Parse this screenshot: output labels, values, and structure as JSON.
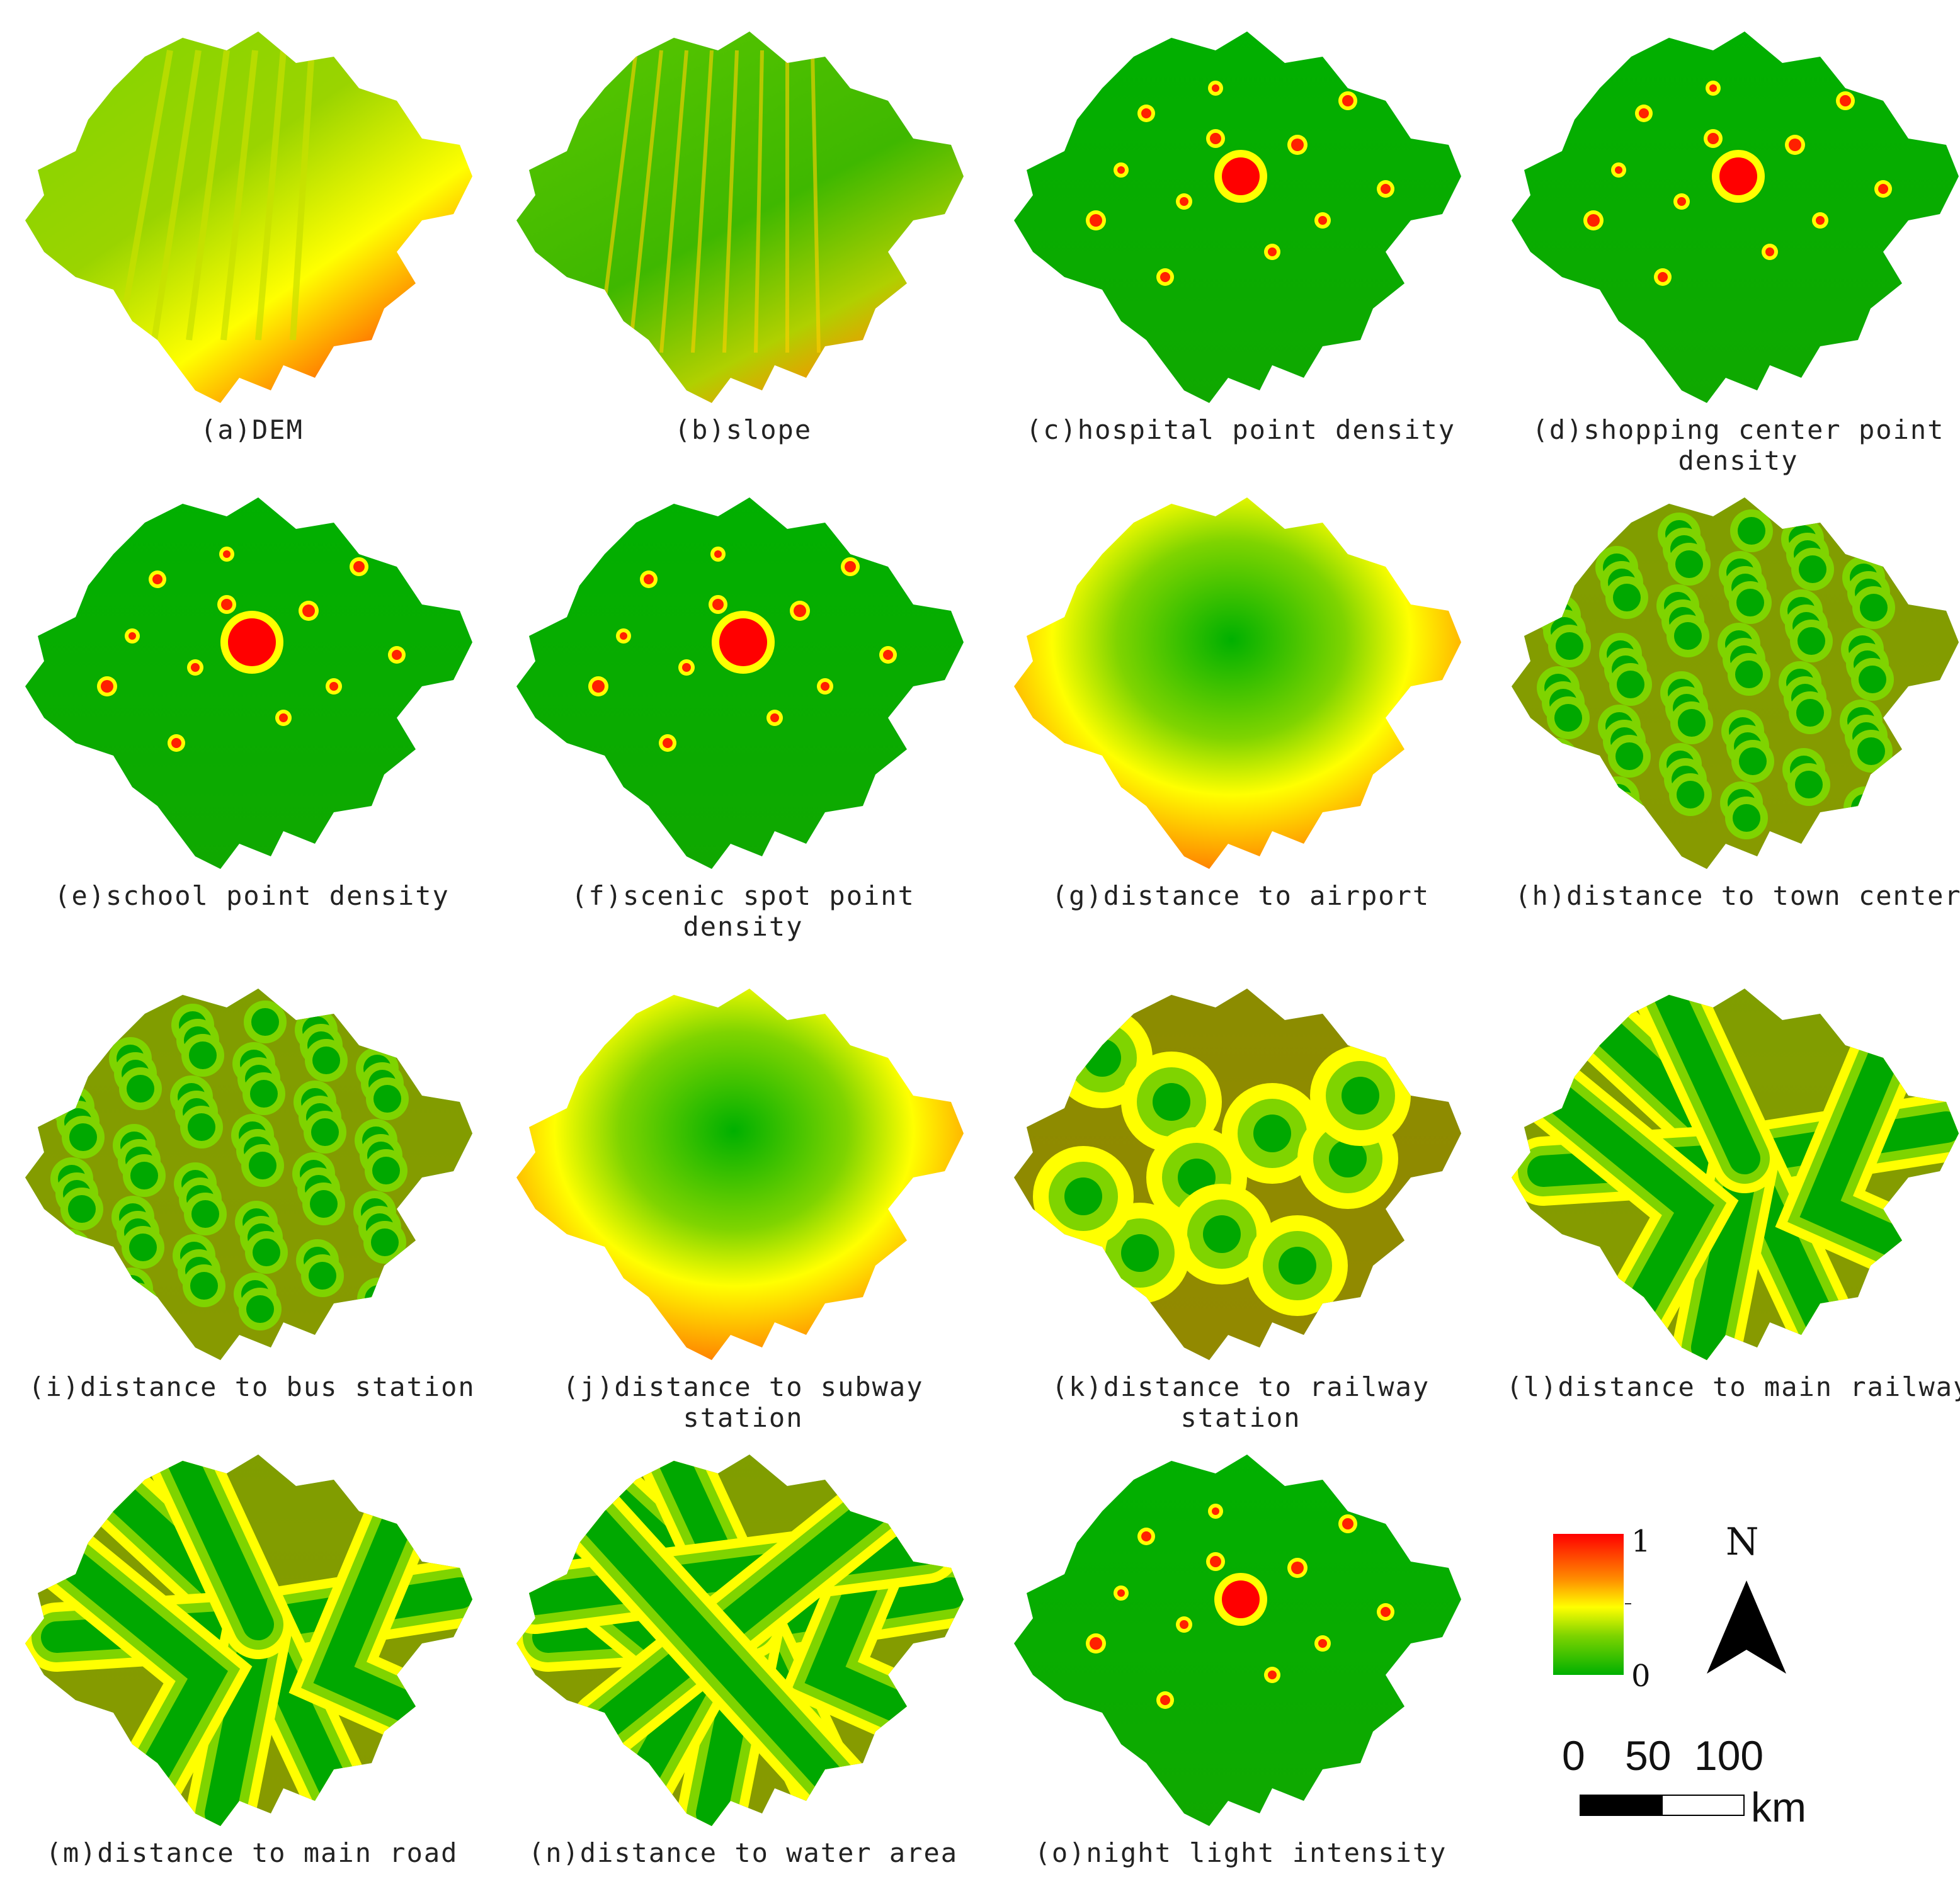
{
  "panels": [
    {
      "caption": "(a)DEM",
      "layer": "DEM",
      "pattern": "dem"
    },
    {
      "caption": "(b)slope",
      "layer": "slope",
      "pattern": "slope"
    },
    {
      "caption": "(c)hospital point density",
      "layer": "hospital point density",
      "pattern": "hotspot"
    },
    {
      "caption": "(d)shopping center point density",
      "layer": "shopping center point density",
      "pattern": "hotspot"
    },
    {
      "caption": "(e)school point density",
      "layer": "school point density",
      "pattern": "hotspot-big"
    },
    {
      "caption": "(f)scenic spot point density",
      "layer": "scenic spot point density",
      "pattern": "hotspot-big"
    },
    {
      "caption": "(g)distance to airport",
      "layer": "distance to airport",
      "pattern": "radial"
    },
    {
      "caption": "(h)distance to town center",
      "layer": "distance to town center",
      "pattern": "buffers"
    },
    {
      "caption": "(i)distance to bus station",
      "layer": "distance to bus station",
      "pattern": "buffers"
    },
    {
      "caption": "(j)distance to subway station",
      "layer": "distance to subway station",
      "pattern": "radial"
    },
    {
      "caption": "(k)distance to railway station",
      "layer": "distance to railway station",
      "pattern": "big-buffers"
    },
    {
      "caption": "(l)distance to main railway",
      "layer": "distance to main railway",
      "pattern": "lines"
    },
    {
      "caption": "(m)distance to main road",
      "layer": "distance to main road",
      "pattern": "lines"
    },
    {
      "caption": "(n)distance to water area",
      "layer": "distance to water area",
      "pattern": "lines-dense"
    },
    {
      "caption": "(o)night light intensity",
      "layer": "night light intensity",
      "pattern": "hotspot"
    }
  ],
  "legend": {
    "max_label": "1",
    "min_label": "0",
    "colors": [
      "#ff0000",
      "#ff8c00",
      "#ffff00",
      "#7fd400",
      "#00b000"
    ]
  },
  "north_arrow": {
    "label": "N"
  },
  "scale_bar": {
    "ticks": [
      "0",
      "50",
      "100"
    ],
    "unit": "km"
  }
}
